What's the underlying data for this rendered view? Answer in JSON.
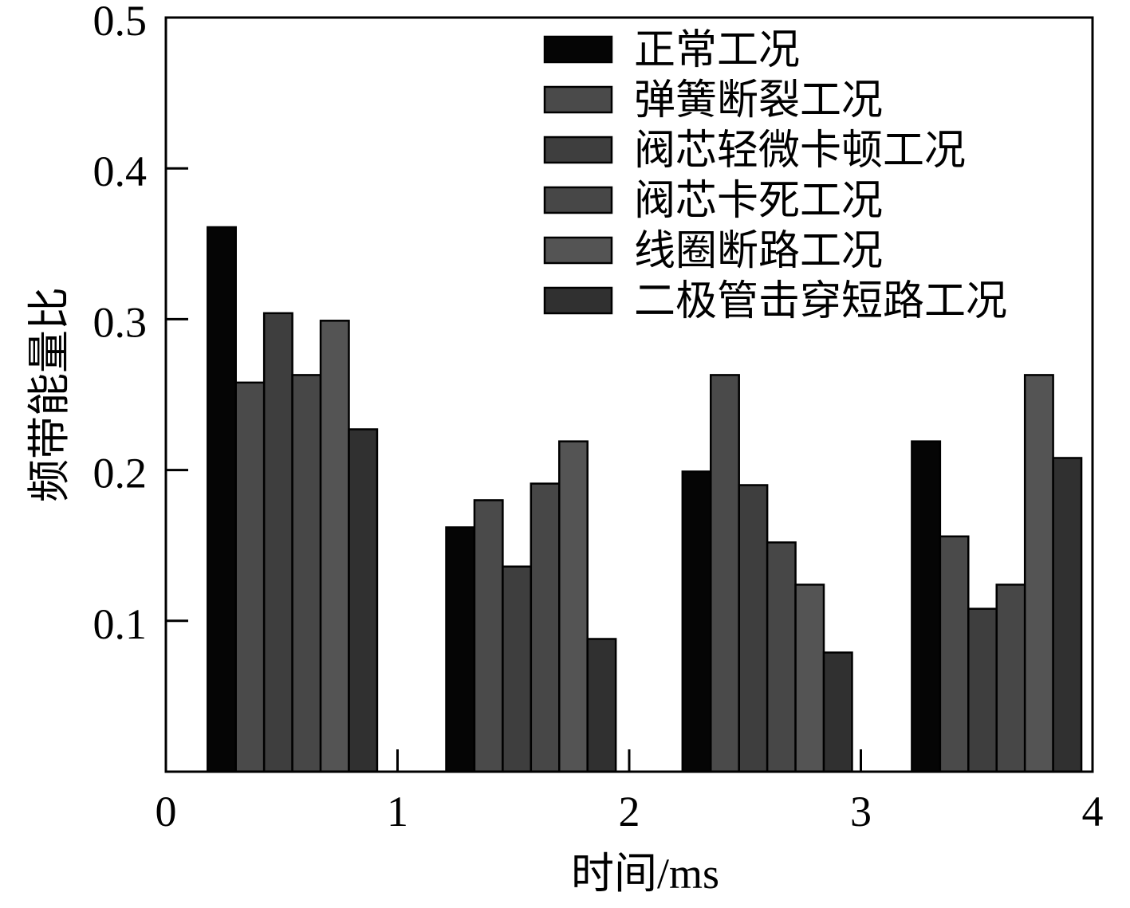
{
  "chart_data": {
    "type": "bar",
    "xlabel": "时间/ms",
    "ylabel": "频带能量比",
    "xlim": [
      0,
      4
    ],
    "ylim": [
      0,
      0.5
    ],
    "xticks": [
      "0",
      "1",
      "2",
      "3",
      "4"
    ],
    "yticks": [
      "0.1",
      "0.2",
      "0.3",
      "0.4",
      "0.5"
    ],
    "ytick_values": [
      0.1,
      0.2,
      0.3,
      0.4,
      0.5
    ],
    "grid": false,
    "legend_position": "top-right",
    "group_starts": [
      0.18,
      1.21,
      2.23,
      3.22
    ],
    "bar_width": 0.122,
    "series": [
      {
        "name": "正常工况",
        "color": "#050505",
        "values": [
          0.361,
          0.162,
          0.199,
          0.219
        ]
      },
      {
        "name": "弹簧断裂工况",
        "color": "#4a4a4a",
        "values": [
          0.258,
          0.18,
          0.263,
          0.156
        ]
      },
      {
        "name": "阀芯轻微卡顿工况",
        "color": "#3e3e3e",
        "values": [
          0.304,
          0.136,
          0.19,
          0.108
        ]
      },
      {
        "name": "阀芯卡死工况",
        "color": "#474747",
        "values": [
          0.263,
          0.191,
          0.152,
          0.124
        ]
      },
      {
        "name": "线圈断路工况",
        "color": "#545454",
        "values": [
          0.299,
          0.219,
          0.124,
          0.263
        ]
      },
      {
        "name": "二极管击穿短路工况",
        "color": "#303030",
        "values": [
          0.227,
          0.088,
          0.079,
          0.208
        ]
      }
    ]
  }
}
